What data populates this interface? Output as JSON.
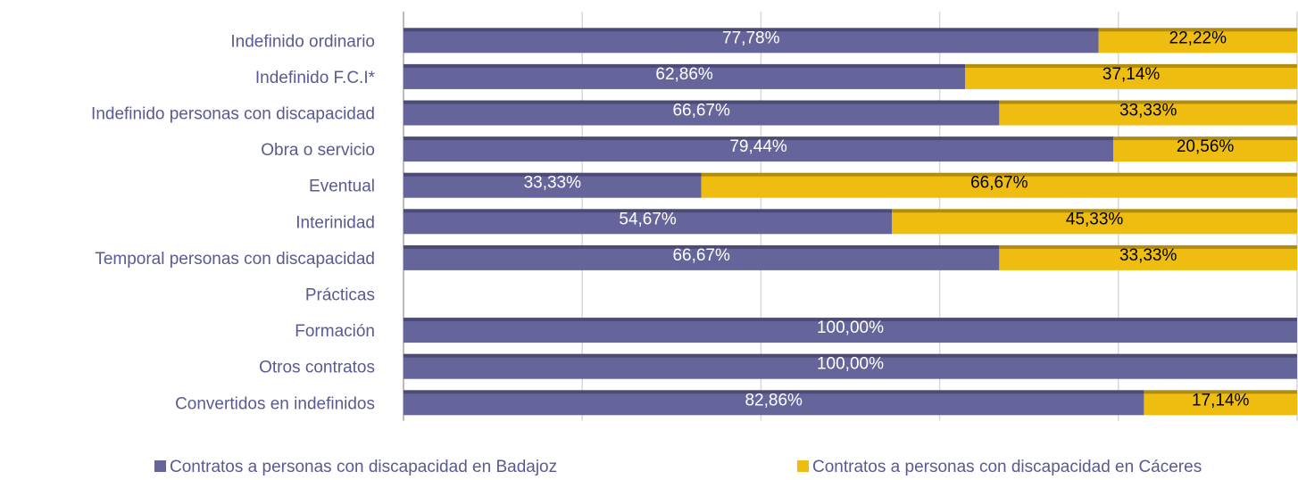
{
  "chart_data": {
    "type": "stacked_bar_horizontal",
    "categories": [
      "Indefinido ordinario",
      "Indefinido F.C.I*",
      "Indefinido personas con discapacidad",
      "Obra o servicio",
      "Eventual ",
      "Interinidad",
      "Temporal personas con discapacidad",
      "Prácticas",
      "Formación",
      "Otros contratos",
      "Convertidos en indefinidos"
    ],
    "series": [
      {
        "name": "Contratos a personas con discapacidad en Badajoz",
        "color": "#65659c",
        "values": [
          77.78,
          62.86,
          66.67,
          79.44,
          33.33,
          54.67,
          66.67,
          null,
          100,
          100,
          82.86
        ],
        "value_labels": [
          "77,78%",
          "62,86%",
          "66,67%",
          "79,44%",
          "33,33%",
          "54,67%",
          "66,67%",
          null,
          "100,00%",
          "100,00%",
          "82,86%"
        ]
      },
      {
        "name": "Contratos a personas con discapacidad en Cáceres",
        "color": "#eebd10",
        "values": [
          22.22,
          37.14,
          33.33,
          20.56,
          66.67,
          45.33,
          33.33,
          null,
          null,
          null,
          17.14
        ],
        "value_labels": [
          "22,22%",
          "37,14%",
          "33,33%",
          "20,56%",
          "66,67%",
          "45,33%",
          "33,33%",
          null,
          null,
          null,
          "17,14%"
        ]
      }
    ],
    "xlim": [
      0,
      100
    ],
    "xticks": [
      0,
      20,
      40,
      60,
      80,
      100
    ],
    "grid": true,
    "legend": "bottom"
  }
}
